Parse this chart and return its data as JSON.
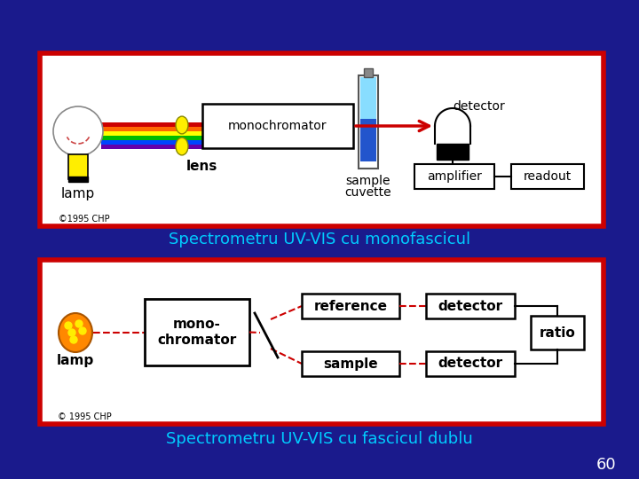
{
  "bg_color": "#1a1a8c",
  "fig_width": 7.2,
  "fig_height": 5.4,
  "text1": "Spectrometru UV-VIS cu monofascicul",
  "text2": "Spectrometru UV-VIS cu fascicul dublu",
  "page_num": "60",
  "text_color": "#00ccff",
  "box_border_color": "#cc0000"
}
